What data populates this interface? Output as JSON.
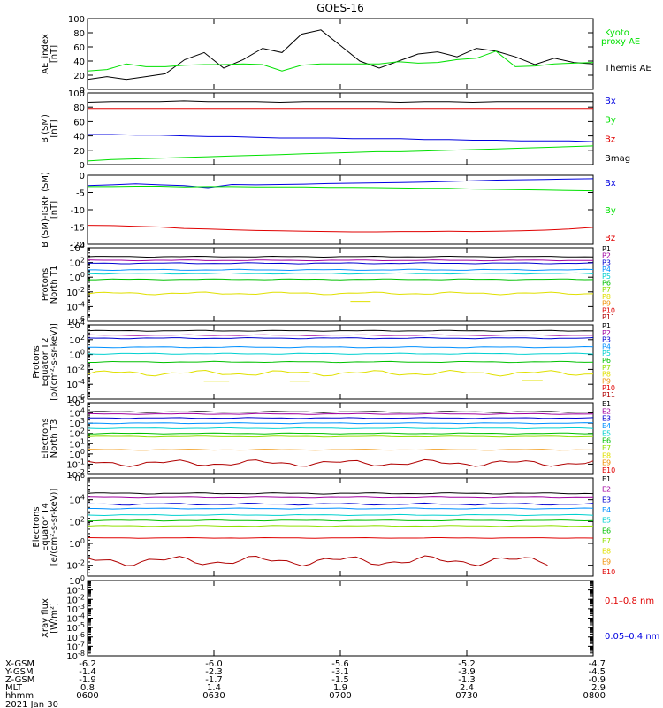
{
  "title": "GOES-16",
  "colors": {
    "black": "#000000",
    "green": "#00e000",
    "blue": "#0000e0",
    "red": "#e00000",
    "p": [
      "#000000",
      "#a000a0",
      "#0000d0",
      "#0090ff",
      "#00d0d0",
      "#00c000",
      "#90e000",
      "#e0e000",
      "#f09000",
      "#e00000",
      "#b00000"
    ],
    "e": [
      "#000000",
      "#a000a0",
      "#0000d0",
      "#0090ff",
      "#00d0d0",
      "#00c000",
      "#90e000",
      "#e0e000",
      "#f09000",
      "#e00000",
      "#b00000"
    ],
    "xray_long": "#e00000",
    "xray_short": "#0000e0"
  },
  "chart_data": [
    {
      "id": "ae",
      "type": "line",
      "ylabel": [
        "AE_index",
        "[nT]"
      ],
      "ylim": [
        0,
        100
      ],
      "yticks": [
        "0",
        "20",
        "40",
        "60",
        "80",
        "100"
      ],
      "legend": [
        {
          "text": "Kyoto",
          "color": "green"
        },
        {
          "text": "proxy AE",
          "color": "green"
        },
        {
          "text": "Themis AE",
          "color": "black"
        }
      ],
      "series": [
        {
          "color": "black",
          "values": [
            14,
            18,
            14,
            18,
            22,
            42,
            52,
            30,
            42,
            58,
            52,
            78,
            84,
            62,
            40,
            30,
            40,
            50,
            53,
            46,
            58,
            54,
            46,
            35,
            44,
            38,
            36
          ]
        },
        {
          "color": "green",
          "values": [
            26,
            28,
            36,
            32,
            32,
            34,
            35,
            35,
            36,
            35,
            26,
            34,
            36,
            36,
            36,
            36,
            39,
            37,
            38,
            42,
            44,
            54,
            32,
            33,
            36,
            37,
            38
          ]
        }
      ]
    },
    {
      "id": "bsm",
      "type": "line",
      "ylabel": [
        "B (SM)",
        "[nT]"
      ],
      "ylim": [
        0,
        100
      ],
      "yticks": [
        "0",
        "20",
        "40",
        "60",
        "80",
        "100"
      ],
      "legend": [
        {
          "text": "Bx",
          "color": "blue"
        },
        {
          "text": "By",
          "color": "green"
        },
        {
          "text": "Bz",
          "color": "red"
        },
        {
          "text": "Bmag",
          "color": "black"
        }
      ],
      "series": [
        {
          "color": "black",
          "values": [
            87,
            88,
            88,
            88,
            89,
            88,
            88,
            88,
            87,
            88,
            88,
            88,
            88,
            87,
            88,
            88,
            87,
            88,
            88,
            88,
            88,
            88
          ]
        },
        {
          "color": "red",
          "values": [
            78,
            78,
            78,
            78,
            78,
            78,
            78,
            78,
            78,
            78,
            78,
            78,
            78,
            78,
            78,
            78,
            78,
            78,
            78,
            78,
            78,
            78
          ]
        },
        {
          "color": "blue",
          "values": [
            42,
            42,
            41,
            41,
            40,
            39,
            39,
            38,
            37,
            37,
            37,
            36,
            36,
            36,
            35,
            35,
            34,
            34,
            33,
            33,
            33,
            32
          ]
        },
        {
          "color": "green",
          "values": [
            5,
            7,
            8,
            9,
            10,
            11,
            12,
            13,
            14,
            15,
            16,
            17,
            18,
            18,
            19,
            20,
            21,
            22,
            23,
            24,
            25,
            26
          ]
        }
      ]
    },
    {
      "id": "bdiff",
      "type": "line",
      "ylabel": [
        "B (SM)-IGRF (SM)",
        "[nT]"
      ],
      "ylim": [
        -20,
        0
      ],
      "yticks": [
        "-20",
        "-15",
        "-10",
        "-5",
        "0"
      ],
      "legend": [
        {
          "text": "Bx",
          "color": "blue"
        },
        {
          "text": "By",
          "color": "green"
        },
        {
          "text": "Bz",
          "color": "red"
        }
      ],
      "series": [
        {
          "color": "blue",
          "values": [
            -3.0,
            -2.8,
            -2.5,
            -2.8,
            -3.0,
            -3.6,
            -2.7,
            -2.8,
            -2.7,
            -2.6,
            -2.4,
            -2.3,
            -2.2,
            -2.1,
            -2.0,
            -1.8,
            -1.6,
            -1.4,
            -1.3,
            -1.2,
            -1.1,
            -1.0
          ]
        },
        {
          "color": "green",
          "values": [
            -3.3,
            -3.3,
            -3.2,
            -3.2,
            -3.4,
            -3.3,
            -3.3,
            -3.4,
            -3.4,
            -3.4,
            -3.5,
            -3.5,
            -3.6,
            -3.7,
            -3.8,
            -3.8,
            -4.0,
            -4.1,
            -4.2,
            -4.3,
            -4.4,
            -4.5
          ]
        },
        {
          "color": "red",
          "values": [
            -14.5,
            -14.6,
            -14.8,
            -15.0,
            -15.4,
            -15.6,
            -15.8,
            -16.0,
            -16.1,
            -16.2,
            -16.3,
            -16.4,
            -16.4,
            -16.3,
            -16.3,
            -16.2,
            -16.3,
            -16.2,
            -16.1,
            -15.9,
            -15.6,
            -15.1
          ]
        }
      ]
    },
    {
      "id": "pn",
      "type": "line",
      "scale": "log",
      "ylabel": [
        "Protons",
        "North T1"
      ],
      "ylim": [
        -6,
        4
      ],
      "yticks": [
        "10^4",
        "10^2",
        "10^0",
        "10^-2",
        "10^-4",
        "10^-6"
      ],
      "legend": [
        "P1",
        "P2",
        "P3",
        "P4",
        "P5",
        "P6",
        "P7",
        "P8",
        "P9",
        "P10",
        "P11"
      ],
      "series": [
        {
          "p": 0,
          "level": 2.8,
          "wiggle": 0.04
        },
        {
          "p": 1,
          "level": 2.3,
          "wiggle": 0.04
        },
        {
          "p": 2,
          "level": 1.9,
          "wiggle": 0.05
        },
        {
          "p": 3,
          "level": 1.0,
          "wiggle": 0.05
        },
        {
          "p": 4,
          "level": 0.5,
          "wiggle": 0.05
        },
        {
          "p": 5,
          "level": -0.3,
          "wiggle": 0.04
        },
        {
          "p": 7,
          "level": -2.2,
          "wiggle": 0.12
        },
        {
          "p": 7,
          "level": -3.3,
          "segment": [
            0.52,
            0.56
          ]
        }
      ]
    },
    {
      "id": "pe",
      "type": "line",
      "scale": "log",
      "ylabel": [
        "Protons",
        "Equator T2",
        "[p/(cm²-s-sr-keV)]"
      ],
      "ylim": [
        -6,
        4
      ],
      "yticks": [
        "10^4",
        "10^2",
        "10^0",
        "10^-2",
        "10^-4",
        "10^-6"
      ],
      "legend": [
        "P1",
        "P2",
        "P3",
        "P4",
        "P5",
        "P6",
        "P7",
        "P8",
        "P9",
        "P10",
        "P11"
      ],
      "series": [
        {
          "p": 0,
          "level": 3.2,
          "wiggle": 0.04
        },
        {
          "p": 1,
          "level": 2.6,
          "wiggle": 0.04
        },
        {
          "p": 2,
          "level": 2.2,
          "wiggle": 0.05
        },
        {
          "p": 3,
          "level": 1.0,
          "wiggle": 0.05
        },
        {
          "p": 4,
          "level": 0.1,
          "wiggle": 0.05
        },
        {
          "p": 5,
          "level": -1.0,
          "wiggle": 0.05
        },
        {
          "p": 7,
          "level": -2.5,
          "wiggle": 0.25
        },
        {
          "p": 7,
          "level": -3.6,
          "segment": [
            0.23,
            0.28
          ]
        },
        {
          "p": 7,
          "level": -3.6,
          "segment": [
            0.4,
            0.44
          ]
        },
        {
          "p": 7,
          "level": -3.5,
          "segment": [
            0.86,
            0.9
          ]
        }
      ]
    },
    {
      "id": "en",
      "type": "line",
      "scale": "log",
      "ylabel": [
        "Electrons",
        "North T3"
      ],
      "ylim": [
        -2,
        5
      ],
      "yticks": [
        "10^5",
        "10^4",
        "10^3",
        "10^2",
        "10^1",
        "10^0",
        "10^-1",
        "10^-2"
      ],
      "legend": [
        "E1",
        "E2",
        "E3",
        "E4",
        "E5",
        "E6",
        "E7",
        "E8",
        "E9",
        "E10"
      ],
      "series": [
        {
          "e": 0,
          "level": 4.1,
          "wiggle": 0.04
        },
        {
          "e": 1,
          "level": 3.9,
          "wiggle": 0.03
        },
        {
          "e": 2,
          "level": 3.5,
          "wiggle": 0.03
        },
        {
          "e": 3,
          "level": 3.0,
          "wiggle": 0.03
        },
        {
          "e": 4,
          "level": 2.5,
          "wiggle": 0.03
        },
        {
          "e": 5,
          "level": 2.0,
          "wiggle": 0.03
        },
        {
          "e": 6,
          "level": 1.7,
          "wiggle": 0.03
        },
        {
          "e": 8,
          "level": 0.4,
          "wiggle": 0.03
        },
        {
          "e": 10,
          "level": -0.9,
          "wiggle": 0.22
        }
      ]
    },
    {
      "id": "ee",
      "type": "line",
      "scale": "log",
      "ylabel": [
        "Electrons",
        "Equator T4",
        "[e/(cm²-s-sr-keV)]"
      ],
      "ylim": [
        -3,
        6
      ],
      "yticks": [
        "10^6",
        "10^4",
        "10^2",
        "10^0",
        "10^-2"
      ],
      "legend": [
        "E1",
        "E2",
        "E3",
        "E4",
        "E5",
        "E6",
        "E7",
        "E8",
        "E9",
        "E10"
      ],
      "series": [
        {
          "e": 0,
          "level": 4.6,
          "wiggle": 0.04
        },
        {
          "e": 1,
          "level": 4.2,
          "wiggle": 0.03
        },
        {
          "e": 2,
          "level": 3.6,
          "wiggle": 0.06
        },
        {
          "e": 3,
          "level": 3.2,
          "wiggle": 0.03
        },
        {
          "e": 4,
          "level": 2.6,
          "wiggle": 0.03
        },
        {
          "e": 5,
          "level": 2.1,
          "wiggle": 0.03
        },
        {
          "e": 6,
          "level": 1.6,
          "wiggle": 0.03
        },
        {
          "e": 9,
          "level": 0.5,
          "wiggle": 0.02
        },
        {
          "e": 10,
          "level": -1.6,
          "wiggle": 0.3,
          "end": 0.91
        }
      ]
    },
    {
      "id": "xray",
      "type": "line",
      "scale": "log",
      "ylabel": [
        "Xray flux",
        "[W/m²]"
      ],
      "ylim": [
        -8,
        0
      ],
      "yticks": [
        "10^0",
        "10^-1",
        "10^-2",
        "10^-3",
        "10^-4",
        "10^-5",
        "10^-6",
        "10^-7",
        "10^-8"
      ],
      "legend": [
        {
          "text": "0.1–0.8 nm",
          "color": "xray_long"
        },
        {
          "text": "0.05–0.4 nm",
          "color": "xray_short"
        }
      ],
      "series": []
    }
  ],
  "x_axis": {
    "ticks": [
      "0600",
      "0630",
      "0700",
      "0730",
      "0800"
    ],
    "rows": [
      {
        "label": "X-GSM",
        "values": [
          "-6.2",
          "-6.0",
          "-5.6",
          "-5.2",
          "-4.7"
        ]
      },
      {
        "label": "Y-GSM",
        "values": [
          "-1.4",
          "-2.3",
          "-3.1",
          "-3.9",
          "-4.5"
        ]
      },
      {
        "label": "Z-GSM",
        "values": [
          "-1.9",
          "-1.7",
          "-1.5",
          "-1.3",
          "-0.9"
        ]
      },
      {
        "label": "MLT",
        "values": [
          "0.8",
          "1.4",
          "1.9",
          "2.4",
          "2.9"
        ]
      },
      {
        "label": "hhmm",
        "values": [
          "0600",
          "0630",
          "0700",
          "0730",
          "0800"
        ]
      }
    ],
    "date": "2021 Jan 30"
  }
}
